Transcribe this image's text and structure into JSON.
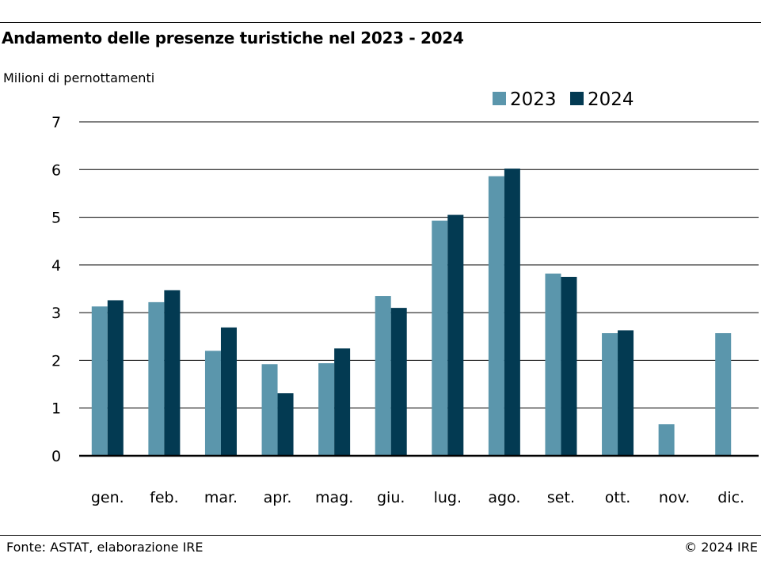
{
  "header": {
    "title": "Andamento delle presenze turistiche nel 2023 - 2024"
  },
  "footer": {
    "source": "Fonte: ASTAT, elaborazione IRE",
    "copyright": "© 2024 IRE"
  },
  "chart_data": {
    "type": "bar",
    "title": "Andamento delle presenze turistiche nel 2023 - 2024",
    "ylabel": "Milioni di pernottamenti",
    "xlabel": "",
    "ylim": [
      0,
      7
    ],
    "yticks": [
      0,
      1,
      2,
      3,
      4,
      5,
      6,
      7
    ],
    "grid": true,
    "legend_position": "top-right",
    "categories": [
      "gen.",
      "feb.",
      "mar.",
      "apr.",
      "mag.",
      "giu.",
      "lug.",
      "ago.",
      "set.",
      "ott.",
      "nov.",
      "dic."
    ],
    "series": [
      {
        "name": "2023",
        "color": "#5b96ac",
        "values": [
          3.13,
          3.22,
          2.2,
          1.92,
          1.94,
          3.35,
          4.93,
          5.86,
          3.82,
          2.57,
          0.66,
          2.57
        ]
      },
      {
        "name": "2024",
        "color": "#033a52",
        "values": [
          3.26,
          3.47,
          2.69,
          1.31,
          2.25,
          3.1,
          5.05,
          6.02,
          3.75,
          2.63,
          null,
          null
        ]
      }
    ]
  }
}
